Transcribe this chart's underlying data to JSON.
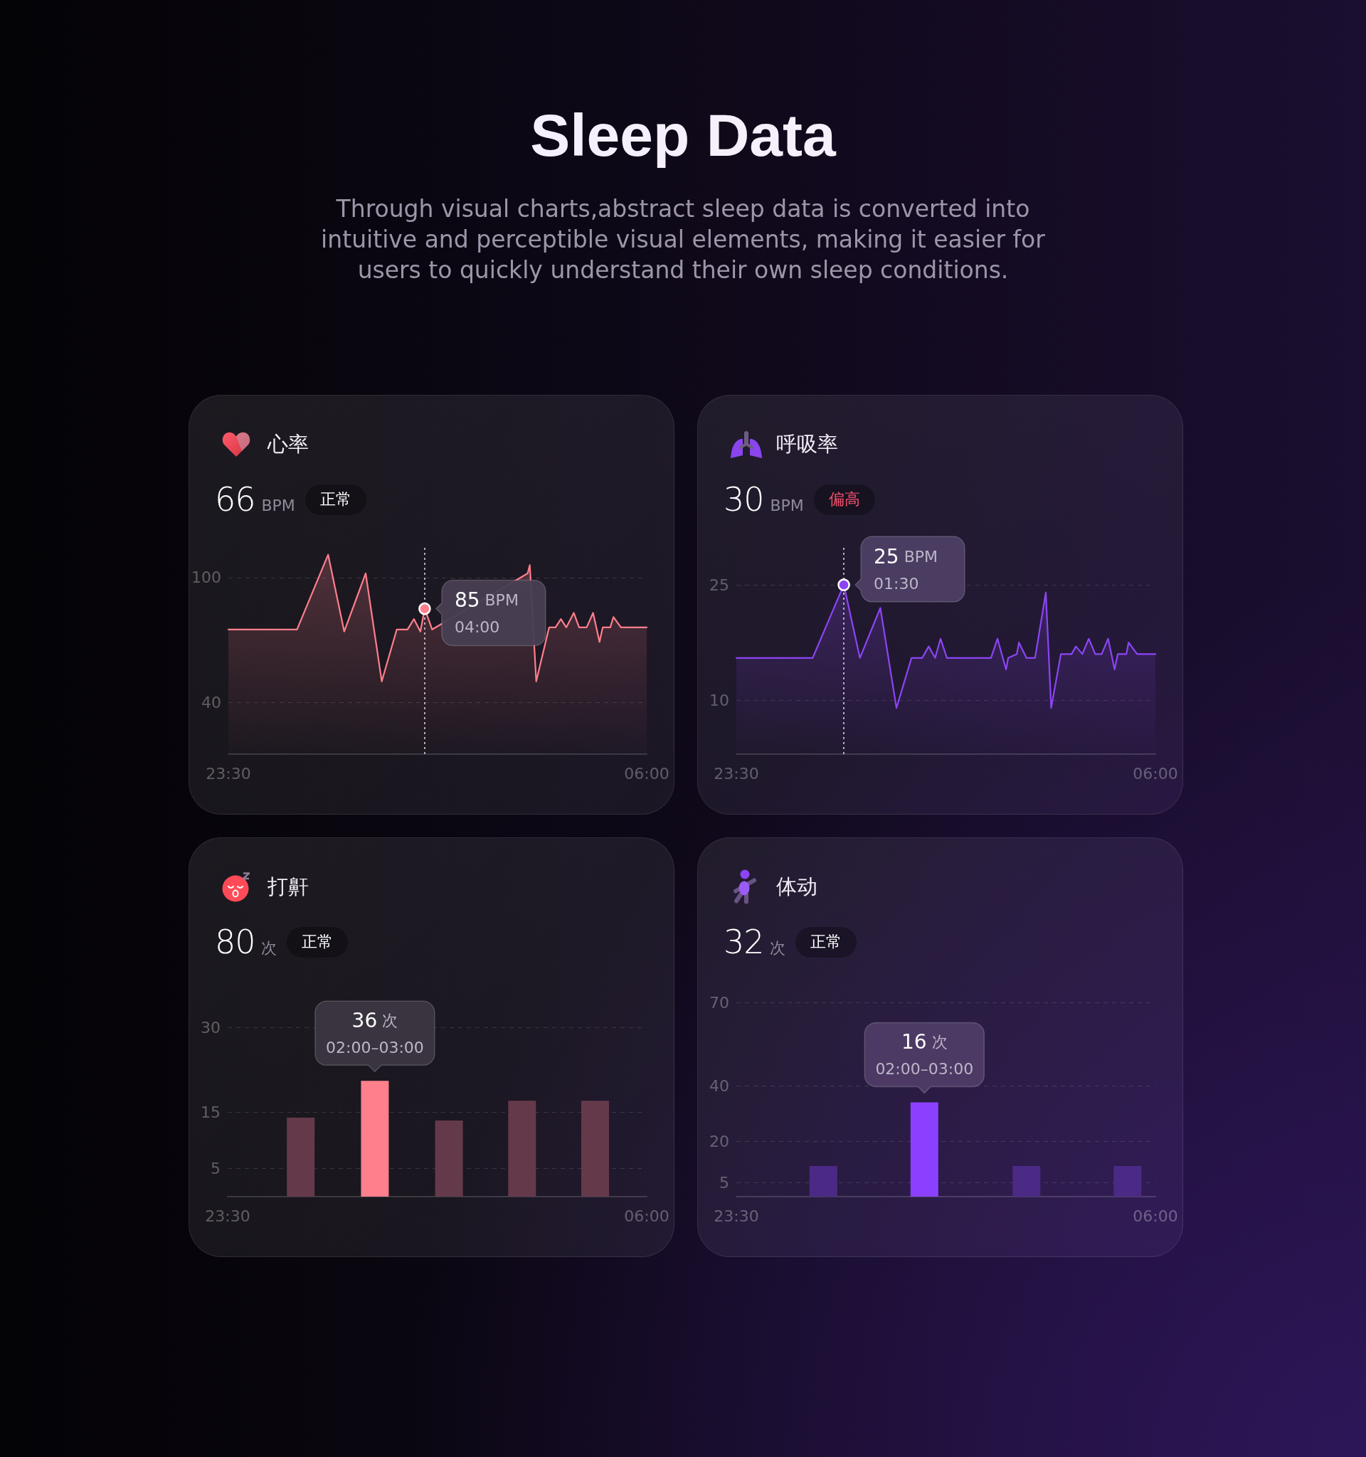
{
  "chart_data": [
    {
      "type": "other",
      "title": "Sleep Data",
      "subtitle": "Through visual charts,abstract sleep data is converted into intuitive and perceptible visual elements, making it easier for users to quickly understand their own sleep conditions."
    },
    {
      "type": "area",
      "title": "心率",
      "subtitle": "66 BPM",
      "annotations": [
        "正常",
        {
          "text": "85 BPM\n04:00",
          "x": "--01-02T02:33",
          "y": 85
        }
      ],
      "xlim": [
        "--01-01T23:30",
        "--01-02T06:00"
      ],
      "xticks": [
        {
          "value": "--01-01T23:30",
          "label": "23:30"
        },
        {
          "value": "--01-02T06:00",
          "label": "06:00"
        }
      ],
      "ylim": [
        15,
        115
      ],
      "yticks": [
        40,
        100
      ],
      "grid": "y",
      "ref_lines": [
        {
          "axis": "x",
          "value": "--01-02T02:33",
          "line_style": "dotted",
          "color": "#d8d0e0"
        }
      ],
      "series": [
        {
          "color": "#ff7f8c",
          "x": [
            "--01-01T23:30",
            "--01-02T00:34",
            "--01-02T01:03",
            "--01-02T01:18",
            "--01-02T01:38",
            "--01-02T01:53",
            "--01-02T02:07",
            "--01-02T02:17",
            "--01-02T02:23",
            "--01-02T02:29",
            "--01-02T02:33",
            "--01-02T02:40",
            "--01-02T04:09",
            "--01-02T04:11",
            "--01-02T04:17",
            "--01-02T04:29",
            "--01-02T04:35",
            "--01-02T04:40",
            "--01-02T04:45",
            "--01-02T04:52",
            "--01-02T04:57",
            "--01-02T05:04",
            "--01-02T05:10",
            "--01-02T05:16",
            "--01-02T05:19",
            "--01-02T05:26",
            "--01-02T05:29",
            "--01-02T05:36",
            "--01-02T06:00"
          ],
          "values": [
            75,
            75,
            111,
            74,
            102,
            50,
            75,
            75,
            80,
            74,
            85,
            75,
            102,
            106,
            50,
            76,
            76,
            80,
            76,
            83,
            76,
            76,
            83,
            69,
            76,
            76,
            81,
            76,
            76
          ]
        },
        {
          "type": "scatter",
          "color": "#ff7f8c",
          "marker": "circle",
          "x": [
            "--01-02T02:33"
          ],
          "values": [
            85
          ]
        }
      ]
    },
    {
      "type": "area",
      "title": "呼吸率",
      "subtitle": "30 BPM",
      "annotations": [
        "偏高",
        {
          "text": "25 BPM\n01:30",
          "x": "--01-02T01:10",
          "y": 25
        }
      ],
      "xlim": [
        "--01-01T23:30",
        "--01-02T06:00"
      ],
      "xticks": [
        {
          "value": "--01-01T23:30",
          "label": "23:30"
        },
        {
          "value": "--01-02T06:00",
          "label": "06:00"
        }
      ],
      "ylim": [
        3,
        30
      ],
      "yticks": [
        10,
        25
      ],
      "grid": "y",
      "ref_lines": [
        {
          "axis": "x",
          "value": "--01-02T01:10",
          "line_style": "dotted",
          "color": "#d8d0e0"
        }
      ],
      "series": [
        {
          "color": "#8c45f5",
          "x": [
            "--01-01T23:30",
            "--01-02T00:41",
            "--01-02T01:10",
            "--01-02T01:25",
            "--01-02T01:44",
            "--01-02T01:59",
            "--01-02T02:13",
            "--01-02T02:23",
            "--01-02T02:29",
            "--01-02T02:35",
            "--01-02T02:40",
            "--01-02T02:46",
            "--01-02T03:27",
            "--01-02T03:33",
            "--01-02T03:41",
            "--01-02T03:43",
            "--01-02T03:51",
            "--01-02T03:53",
            "--01-02T04:00",
            "--01-02T04:08",
            "--01-02T04:18",
            "--01-02T04:23",
            "--01-02T04:32",
            "--01-02T04:42",
            "--01-02T04:46",
            "--01-02T04:52",
            "--01-02T04:58",
            "--01-02T05:04",
            "--01-02T05:10",
            "--01-02T05:16",
            "--01-02T05:22",
            "--01-02T05:25",
            "--01-02T05:33",
            "--01-02T05:35",
            "--01-02T05:43",
            "--01-02T06:00"
          ],
          "values": [
            15.5,
            15.5,
            25,
            15.5,
            22,
            9,
            15.5,
            15.5,
            17,
            15.5,
            18,
            15.5,
            15.5,
            18,
            14,
            15.5,
            16,
            17.5,
            15.5,
            15.5,
            24,
            9,
            16,
            16,
            17,
            16,
            18,
            16,
            16,
            18,
            14,
            16,
            16,
            17.5,
            16,
            16
          ]
        },
        {
          "type": "scatter",
          "color": "#8c45f5",
          "marker": "circle",
          "x": [
            "--01-02T01:10"
          ],
          "values": [
            25
          ]
        }
      ]
    },
    {
      "type": "bar",
      "title": "打鼾",
      "subtitle": "80 次",
      "annotations": [
        "正常",
        {
          "text": "36 次\n02:00–03:00",
          "x": "--01-02T01:47",
          "y": 20.5
        }
      ],
      "xlim": [
        "--01-01T23:30",
        "--01-02T06:00"
      ],
      "xticks": [
        {
          "value": "--01-01T23:30",
          "label": "23:30"
        },
        {
          "value": "--01-02T06:00",
          "label": "06:00"
        }
      ],
      "ylim": [
        0,
        30
      ],
      "yticks": [
        5,
        15,
        30
      ],
      "grid": "y",
      "x": [
        "--01-02T00:38",
        "--01-02T01:47",
        "--01-02T02:56",
        "--01-02T04:04",
        "--01-02T05:12"
      ],
      "values": [
        14,
        20.5,
        13.5,
        17,
        17
      ],
      "colors": [
        "#643a4b",
        "#ff7f8c",
        "#643a4b",
        "#643a4b",
        "#643a4b"
      ]
    },
    {
      "type": "bar",
      "title": "体动",
      "subtitle": "32 次",
      "annotations": [
        "正常",
        {
          "text": "16 次\n02:00–03:00",
          "x": "--01-02T02:25",
          "y": 34
        }
      ],
      "xlim": [
        "--01-01T23:30",
        "--01-02T06:00"
      ],
      "xticks": [
        {
          "value": "--01-01T23:30",
          "label": "23:30"
        },
        {
          "value": "--01-02T06:00",
          "label": "06:00"
        }
      ],
      "ylim": [
        0,
        70
      ],
      "yticks": [
        5,
        20,
        40,
        70
      ],
      "grid": "y",
      "x": [
        "--01-02T00:51",
        "--01-02T02:25",
        "--01-02T04:00",
        "--01-02T05:34"
      ],
      "values": [
        11,
        34,
        11,
        11
      ],
      "colors": [
        "#4b2a85",
        "#8c40ff",
        "#4b2a85",
        "#4b2a85"
      ]
    }
  ]
}
